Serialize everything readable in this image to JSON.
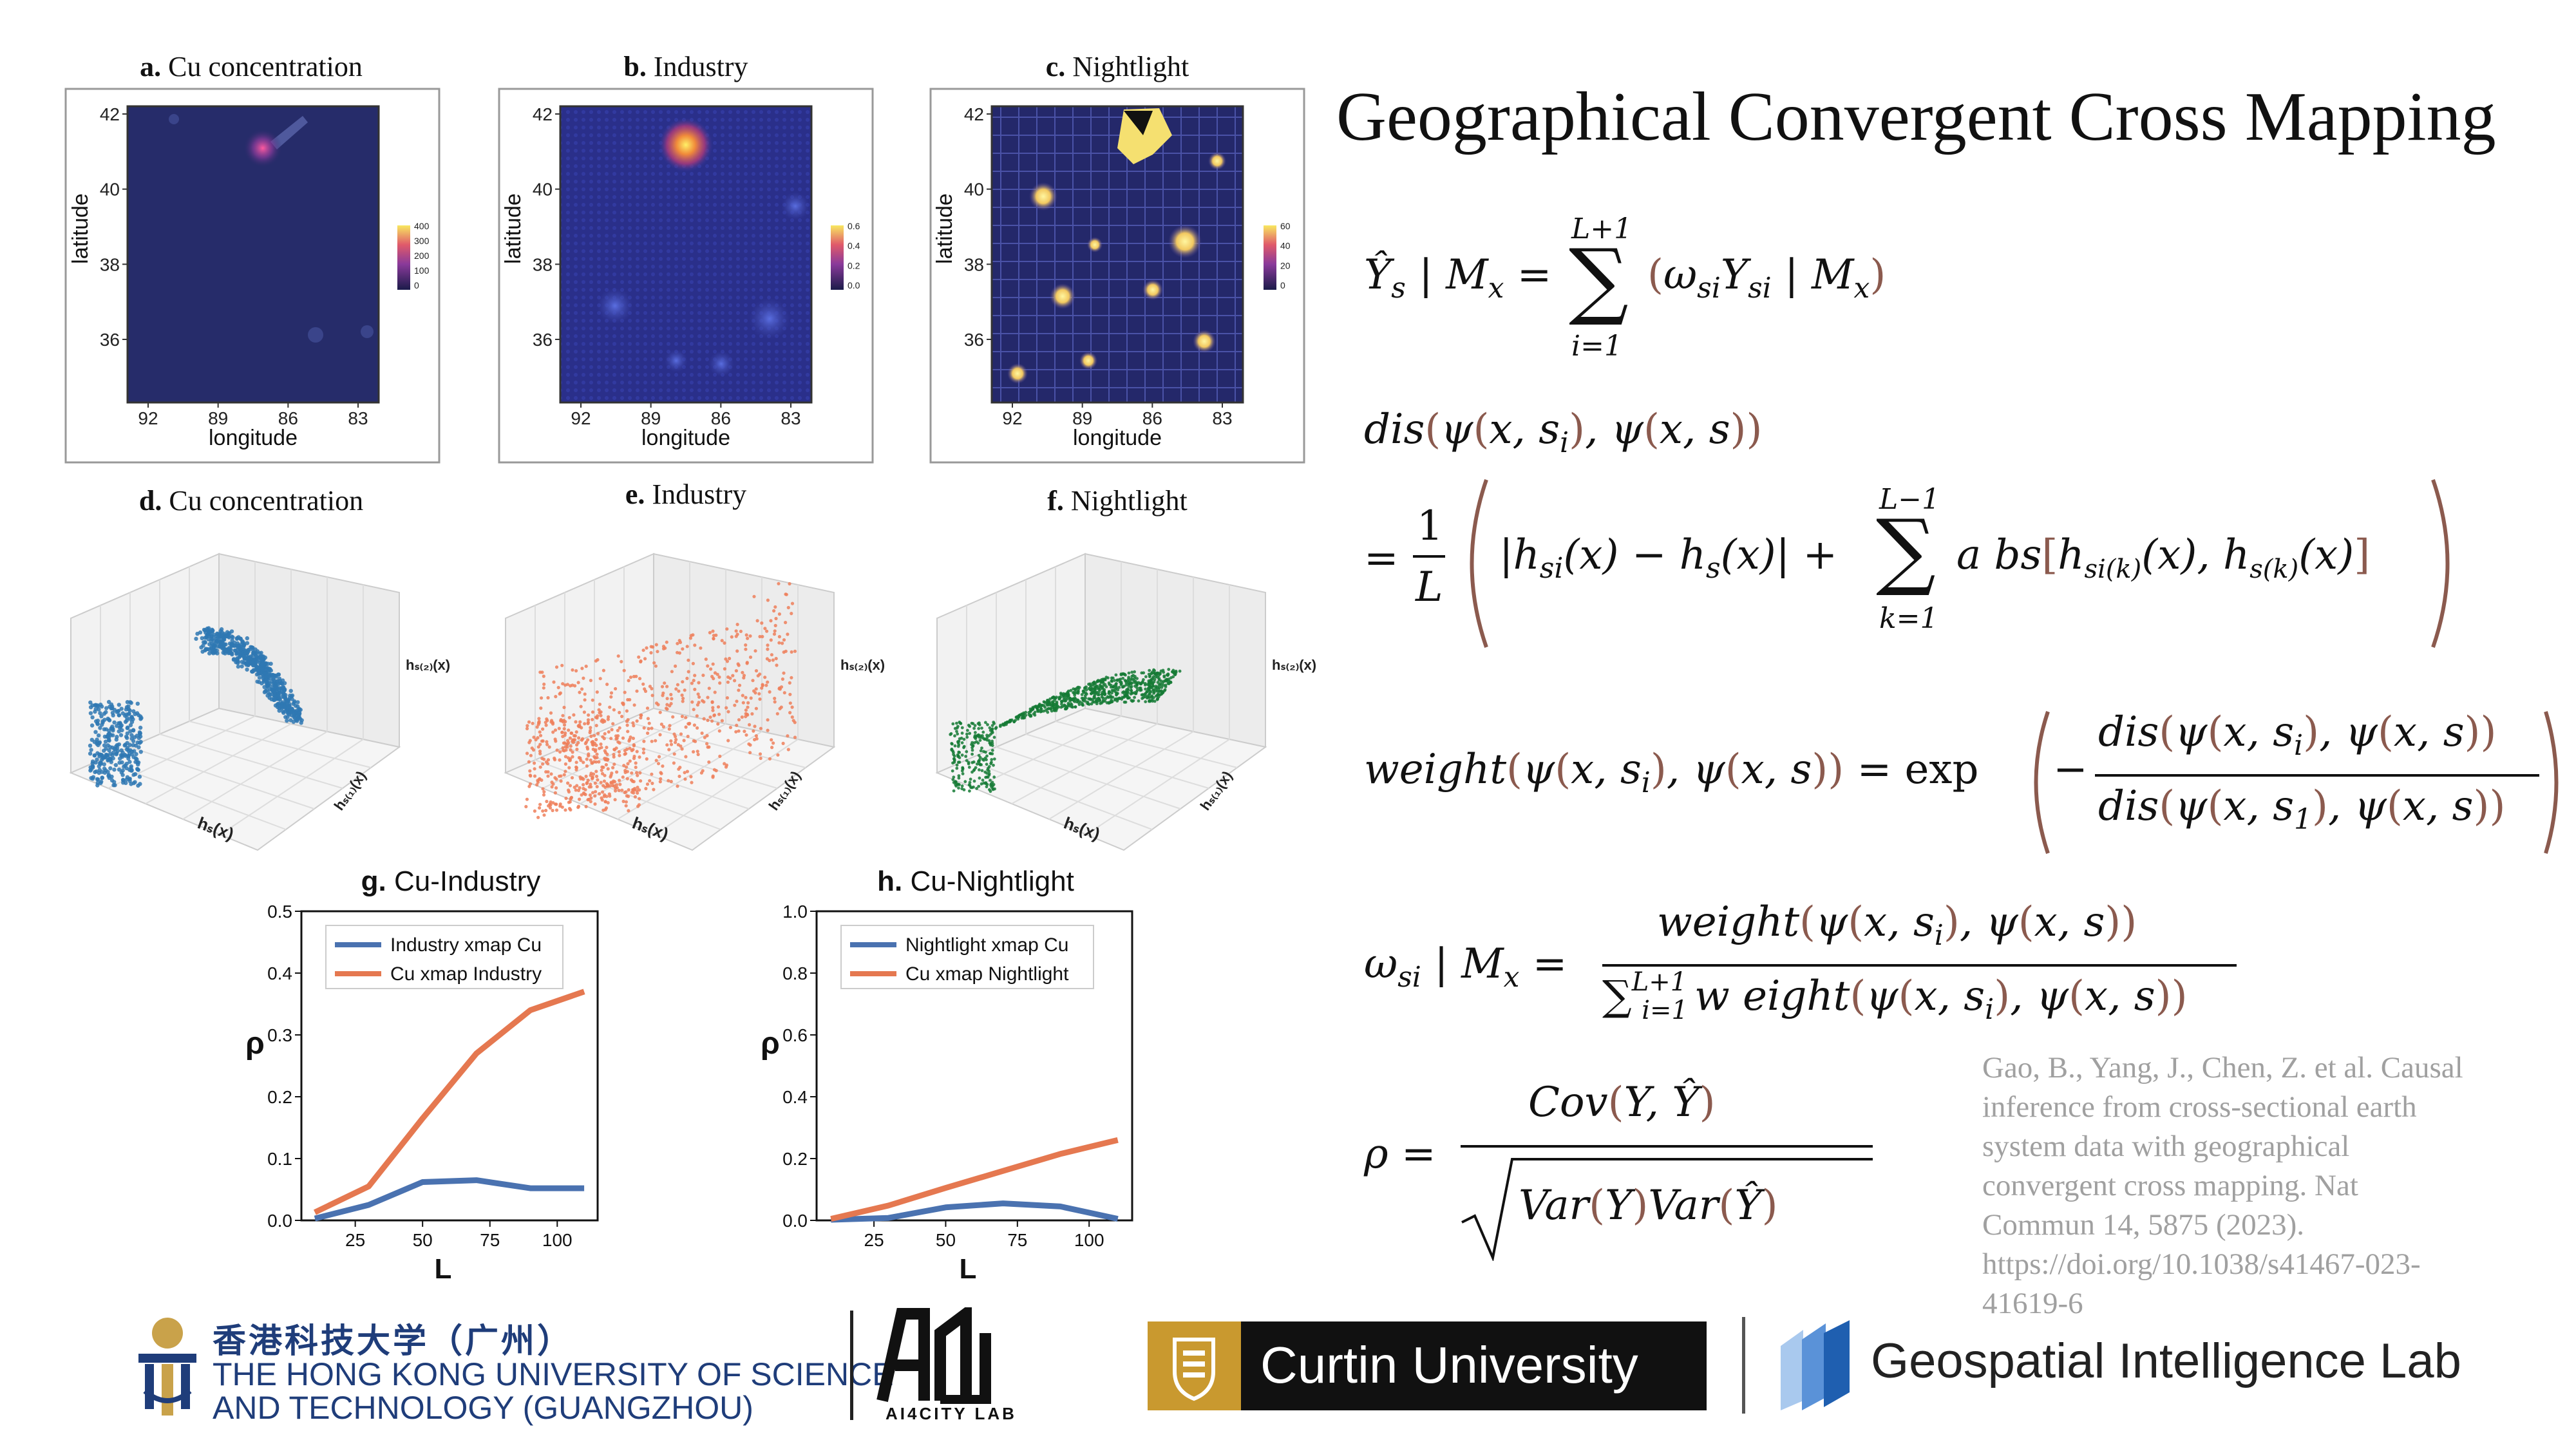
{
  "slide_title": "Geographical Convergent Cross Mapping",
  "maps": [
    {
      "letter": "a.",
      "name": "Cu concentration",
      "colorbar_ticks": [
        "400",
        "300",
        "200",
        "100",
        "0"
      ]
    },
    {
      "letter": "b.",
      "name": "Industry",
      "colorbar_ticks": [
        "0.6",
        "0.4",
        "0.2",
        "0.0"
      ]
    },
    {
      "letter": "c.",
      "name": "Nightlight",
      "colorbar_ticks": [
        "60",
        "40",
        "20",
        "0"
      ]
    }
  ],
  "map_axes": {
    "xlabel": "longitude",
    "ylabel": "latitude",
    "xticks": [
      "92",
      "89",
      "86",
      "83"
    ],
    "yticks": [
      "42",
      "40",
      "38",
      "36"
    ]
  },
  "scatter3d": [
    {
      "letter": "d.",
      "name": "Cu concentration",
      "color": "#2f78b3",
      "axis_x": "hₛ(x)",
      "axis_y": "hₛ₍₁₎(x)",
      "axis_z": "hₛ₍₂₎(x)"
    },
    {
      "letter": "e.",
      "name": "Industry",
      "color": "#ee7f5a",
      "axis_x": "hₛ(x)",
      "axis_y": "hₛ₍₁₎(x)",
      "axis_z": "hₛ₍₂₎(x)"
    },
    {
      "letter": "f.",
      "name": "Nightlight",
      "color": "#157a35",
      "axis_x": "hₛ(x)",
      "axis_y": "hₛ₍₁₎(x)",
      "axis_z": "hₛ₍₂₎(x)"
    }
  ],
  "chart_data": [
    {
      "type": "line",
      "letter": "g.",
      "title": "Cu-Industry",
      "xlabel": "L",
      "ylabel": "ρ",
      "x": [
        10,
        30,
        50,
        70,
        90,
        110
      ],
      "xticks": [
        25,
        50,
        75,
        100
      ],
      "yticks": [
        0.0,
        0.1,
        0.2,
        0.3,
        0.4,
        0.5
      ],
      "xlim": [
        5,
        115
      ],
      "ylim": [
        0,
        0.5
      ],
      "series": [
        {
          "name": "Industry  xmap Cu",
          "color": "#4a72b0",
          "values": [
            0.003,
            0.025,
            0.062,
            0.065,
            0.052,
            0.052
          ]
        },
        {
          "name": "Cu xmap Industry",
          "color": "#e57850",
          "values": [
            0.013,
            0.055,
            0.165,
            0.27,
            0.34,
            0.37
          ]
        }
      ]
    },
    {
      "type": "line",
      "letter": "h.",
      "title": "Cu-Nightlight",
      "xlabel": "L",
      "ylabel": "ρ",
      "x": [
        10,
        30,
        50,
        70,
        90,
        110
      ],
      "xticks": [
        25,
        50,
        75,
        100
      ],
      "yticks": [
        0.0,
        0.2,
        0.4,
        0.6,
        0.8,
        1.0
      ],
      "xlim": [
        5,
        115
      ],
      "ylim": [
        0,
        1.0
      ],
      "series": [
        {
          "name": "Nightlight  xmap Cu",
          "color": "#4a72b0",
          "values": [
            0.002,
            0.008,
            0.042,
            0.055,
            0.045,
            0.005
          ]
        },
        {
          "name": "Cu xmap Nightlight",
          "color": "#e57850",
          "values": [
            0.005,
            0.048,
            0.105,
            0.16,
            0.215,
            0.26
          ]
        }
      ]
    }
  ],
  "reference_lines": [
    "Gao, B., Yang, J., Chen, Z. et al. Causal",
    "inference from cross-sectional earth",
    "system data with geographical",
    "convergent cross mapping. Nat",
    "Commun 14, 5875 (2023).",
    "https://doi.org/10.1038/s41467-023-",
    "41619-6"
  ],
  "logos": {
    "hkust_cn": "香港科技大学（广州）",
    "hkust_en1": "THE HONG KONG UNIVERSITY OF SCIENCE",
    "hkust_en2": "AND TECHNOLOGY (GUANGZHOU)",
    "ai4city": "AI4CITY LAB",
    "curtin": "Curtin University",
    "gil": "Geospatial Intelligence Lab"
  }
}
